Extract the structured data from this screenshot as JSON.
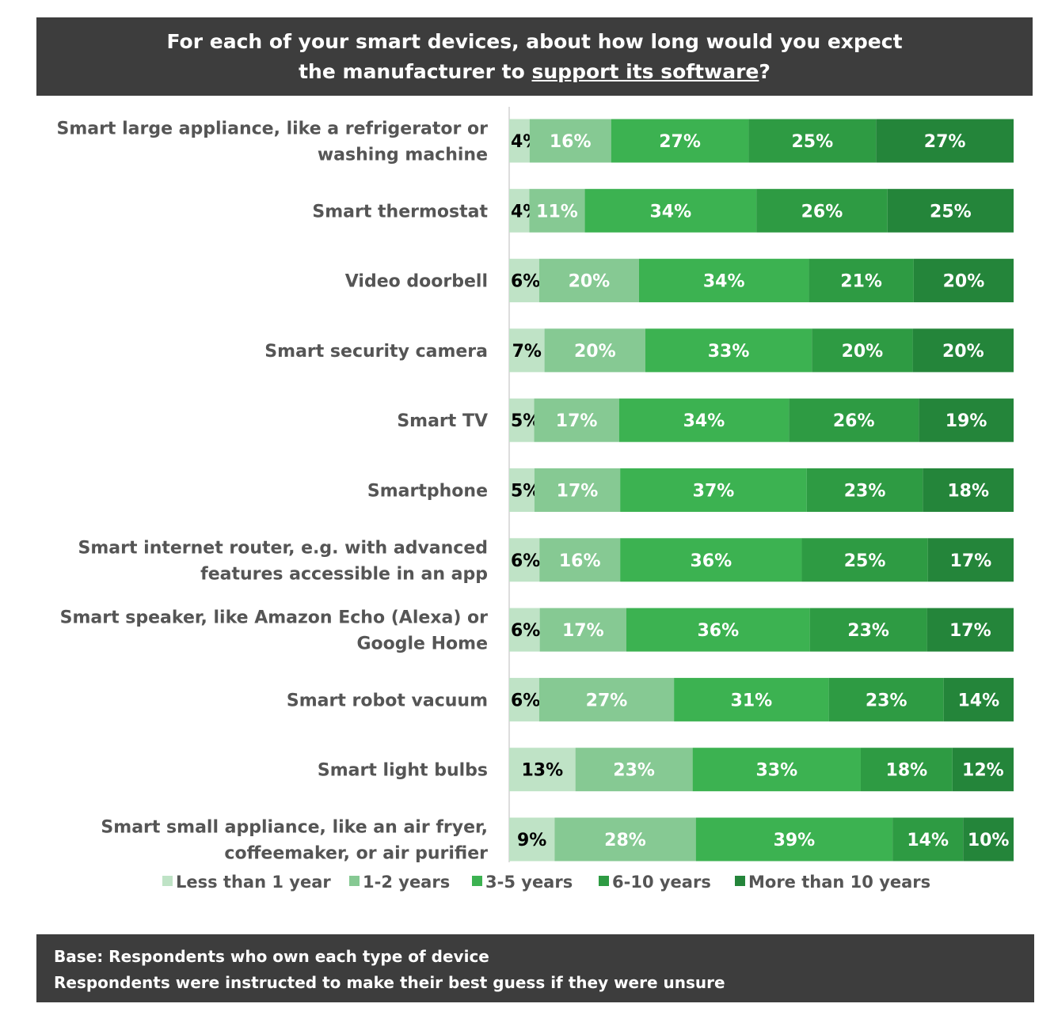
{
  "title": {
    "line1": "For each of your smart devices, about how long would you expect",
    "line2_prefix": "the manufacturer to ",
    "line2_underlined": "support its software",
    "line2_suffix": "?"
  },
  "footer": {
    "line1": "Base: Respondents who own each type of device",
    "line2": "Respondents were instructed to make their best guess if they were unsure"
  },
  "chart_data": {
    "type": "bar",
    "orientation": "horizontal",
    "stacked": true,
    "xlim": [
      0,
      100
    ],
    "unit": "%",
    "grid": false,
    "legend_position": "bottom",
    "categories": [
      [
        "Smart large appliance, like a refrigerator or",
        "washing machine"
      ],
      [
        "Smart thermostat"
      ],
      [
        "Video doorbell"
      ],
      [
        "Smart security camera"
      ],
      [
        "Smart TV"
      ],
      [
        "Smartphone"
      ],
      [
        "Smart internet router, e.g. with advanced",
        "features accessible in an app"
      ],
      [
        "Smart speaker, like Amazon Echo (Alexa) or",
        "Google Home"
      ],
      [
        "Smart robot vacuum"
      ],
      [
        "Smart light bulbs"
      ],
      [
        "Smart small appliance, like an air fryer,",
        "coffeemaker, or air purifier"
      ]
    ],
    "series": [
      {
        "name": "Less than 1 year",
        "color": "#bfe3c6",
        "label_color": "#000000",
        "values": [
          4,
          4,
          6,
          7,
          5,
          5,
          6,
          6,
          6,
          13,
          9
        ]
      },
      {
        "name": "1-2 years",
        "color": "#86c993",
        "label_color": "#ffffff",
        "values": [
          16,
          11,
          20,
          20,
          17,
          17,
          16,
          17,
          27,
          23,
          28
        ]
      },
      {
        "name": "3-5 years",
        "color": "#3cb251",
        "label_color": "#ffffff",
        "values": [
          27,
          34,
          34,
          33,
          34,
          37,
          36,
          36,
          31,
          33,
          39
        ]
      },
      {
        "name": "6-10 years",
        "color": "#2e9b43",
        "label_color": "#ffffff",
        "values": [
          25,
          26,
          21,
          20,
          26,
          23,
          25,
          23,
          23,
          18,
          14
        ]
      },
      {
        "name": "More than 10 years",
        "color": "#24853a",
        "label_color": "#ffffff",
        "values": [
          27,
          25,
          20,
          20,
          19,
          18,
          17,
          17,
          14,
          12,
          10
        ]
      }
    ]
  }
}
